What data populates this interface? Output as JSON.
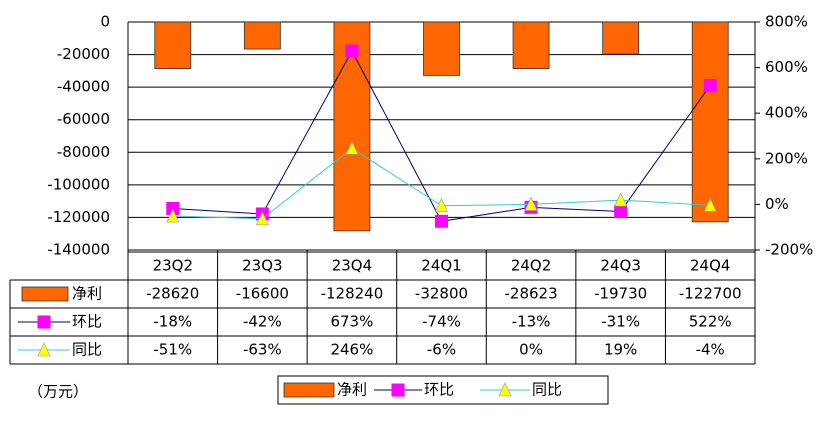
{
  "chart_data": {
    "type": "bar",
    "categories": [
      "23Q2",
      "23Q3",
      "23Q4",
      "24Q1",
      "24Q2",
      "24Q3",
      "24Q4"
    ],
    "series": [
      {
        "name": "净利",
        "type": "bar",
        "color": "#FF6600",
        "values": [
          -28620,
          -16600,
          -128240,
          -32800,
          -28623,
          -19730,
          -122700
        ]
      },
      {
        "name": "环比",
        "type": "line",
        "axis": "y2",
        "color": "#000080",
        "marker": "square",
        "marker_color": "#FF00FF",
        "values": [
          -18,
          -42,
          673,
          -74,
          -13,
          -31,
          522
        ],
        "value_labels": [
          "-18%",
          "-42%",
          "673%",
          "-74%",
          "-13%",
          "-31%",
          "522%"
        ]
      },
      {
        "name": "同比",
        "type": "line",
        "axis": "y2",
        "color": "#33CCCC",
        "marker": "triangle",
        "marker_color": "#FFFF00",
        "values": [
          -51,
          -63,
          246,
          -6,
          0,
          19,
          -4
        ],
        "value_labels": [
          "-51%",
          "-63%",
          "246%",
          "-6%",
          "0%",
          "19%",
          "-4%"
        ]
      }
    ],
    "ylim": [
      -140000,
      0
    ],
    "yticks": [
      0,
      -20000,
      -40000,
      -60000,
      -80000,
      -100000,
      -120000,
      -140000
    ],
    "y2lim": [
      -200,
      800
    ],
    "y2ticks": [
      {
        "value": 800,
        "label": "800%"
      },
      {
        "value": 600,
        "label": "600%"
      },
      {
        "value": 400,
        "label": "400%"
      },
      {
        "value": 200,
        "label": "200%"
      },
      {
        "value": 0,
        "label": "0%"
      },
      {
        "value": -200,
        "label": "-200%"
      }
    ],
    "grid": true,
    "unit_note": "（万元）"
  }
}
